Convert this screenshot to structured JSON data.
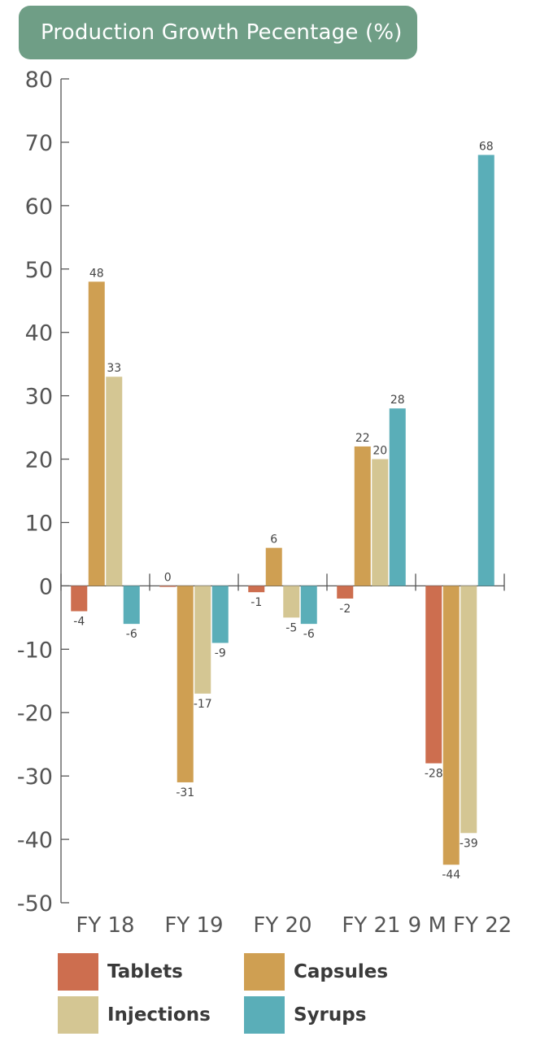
{
  "header": {
    "title": "Production Growth Pecentage (%)"
  },
  "colors": {
    "title_bg": "#6f9e86",
    "Tablets": "#cd6e4f",
    "Capsules": "#cf9f52",
    "Injections": "#d4c693",
    "Syrups": "#5aaeb8",
    "axis": "#555555",
    "text": "#555555"
  },
  "chart_data": {
    "type": "bar",
    "categories": [
      "FY 18",
      "FY 19",
      "FY 20",
      "FY 21",
      "9 M FY 22"
    ],
    "series": [
      {
        "name": "Tablets",
        "values": [
          -4,
          0,
          -1,
          -2,
          -28
        ]
      },
      {
        "name": "Capsules",
        "values": [
          48,
          -31,
          6,
          22,
          -44
        ]
      },
      {
        "name": "Injections",
        "values": [
          33,
          -17,
          -5,
          20,
          -39
        ]
      },
      {
        "name": "Syrups",
        "values": [
          -6,
          -9,
          -6,
          28,
          68
        ]
      }
    ],
    "ylim": [
      -50,
      80
    ],
    "yticks": [
      80,
      70,
      60,
      50,
      40,
      30,
      20,
      10,
      0,
      -10,
      -20,
      -30,
      -40,
      -50
    ],
    "grid": false,
    "legend_position": "bottom",
    "title": "Production Growth Pecentage (%)",
    "xlabel": "",
    "ylabel": ""
  },
  "legend": {
    "items": [
      {
        "label": "Tablets",
        "color": "#cd6e4f"
      },
      {
        "label": "Capsules",
        "color": "#cf9f52"
      },
      {
        "label": "Injections",
        "color": "#d4c693"
      },
      {
        "label": "Syrups",
        "color": "#5aaeb8"
      }
    ]
  }
}
